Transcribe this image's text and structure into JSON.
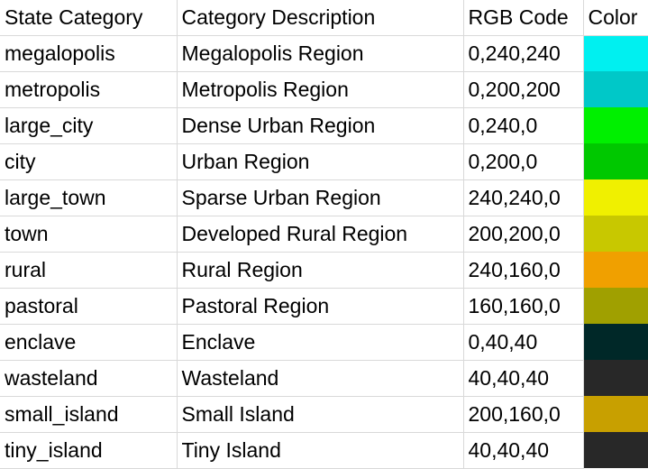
{
  "table": {
    "headers": [
      "State Category",
      "Category Description",
      "RGB Code",
      "Color"
    ],
    "rows": [
      {
        "category": "megalopolis",
        "description": "Megalopolis Region",
        "rgb": "0,240,240",
        "color": "#00f0f0"
      },
      {
        "category": "metropolis",
        "description": "Metropolis Region",
        "rgb": "0,200,200",
        "color": "#00c8c8"
      },
      {
        "category": "large_city",
        "description": "Dense Urban Region",
        "rgb": "0,240,0",
        "color": "#00f000"
      },
      {
        "category": "city",
        "description": "Urban Region",
        "rgb": "0,200,0",
        "color": "#00c800"
      },
      {
        "category": "large_town",
        "description": "Sparse Urban Region",
        "rgb": "240,240,0",
        "color": "#f0f000"
      },
      {
        "category": "town",
        "description": "Developed Rural Region",
        "rgb": "200,200,0",
        "color": "#c8c800"
      },
      {
        "category": "rural",
        "description": "Rural Region",
        "rgb": "240,160,0",
        "color": "#f0a000"
      },
      {
        "category": "pastoral",
        "description": "Pastoral Region",
        "rgb": "160,160,0",
        "color": "#a0a000"
      },
      {
        "category": "enclave",
        "description": "Enclave",
        "rgb": "0,40,40",
        "color": "#002828"
      },
      {
        "category": "wasteland",
        "description": "Wasteland",
        "rgb": "40,40,40",
        "color": "#282828"
      },
      {
        "category": "small_island",
        "description": "Small Island",
        "rgb": "200,160,0",
        "color": "#c8a000"
      },
      {
        "category": "tiny_island",
        "description": "Tiny Island",
        "rgb": "40,40,40",
        "color": "#282828"
      }
    ]
  }
}
